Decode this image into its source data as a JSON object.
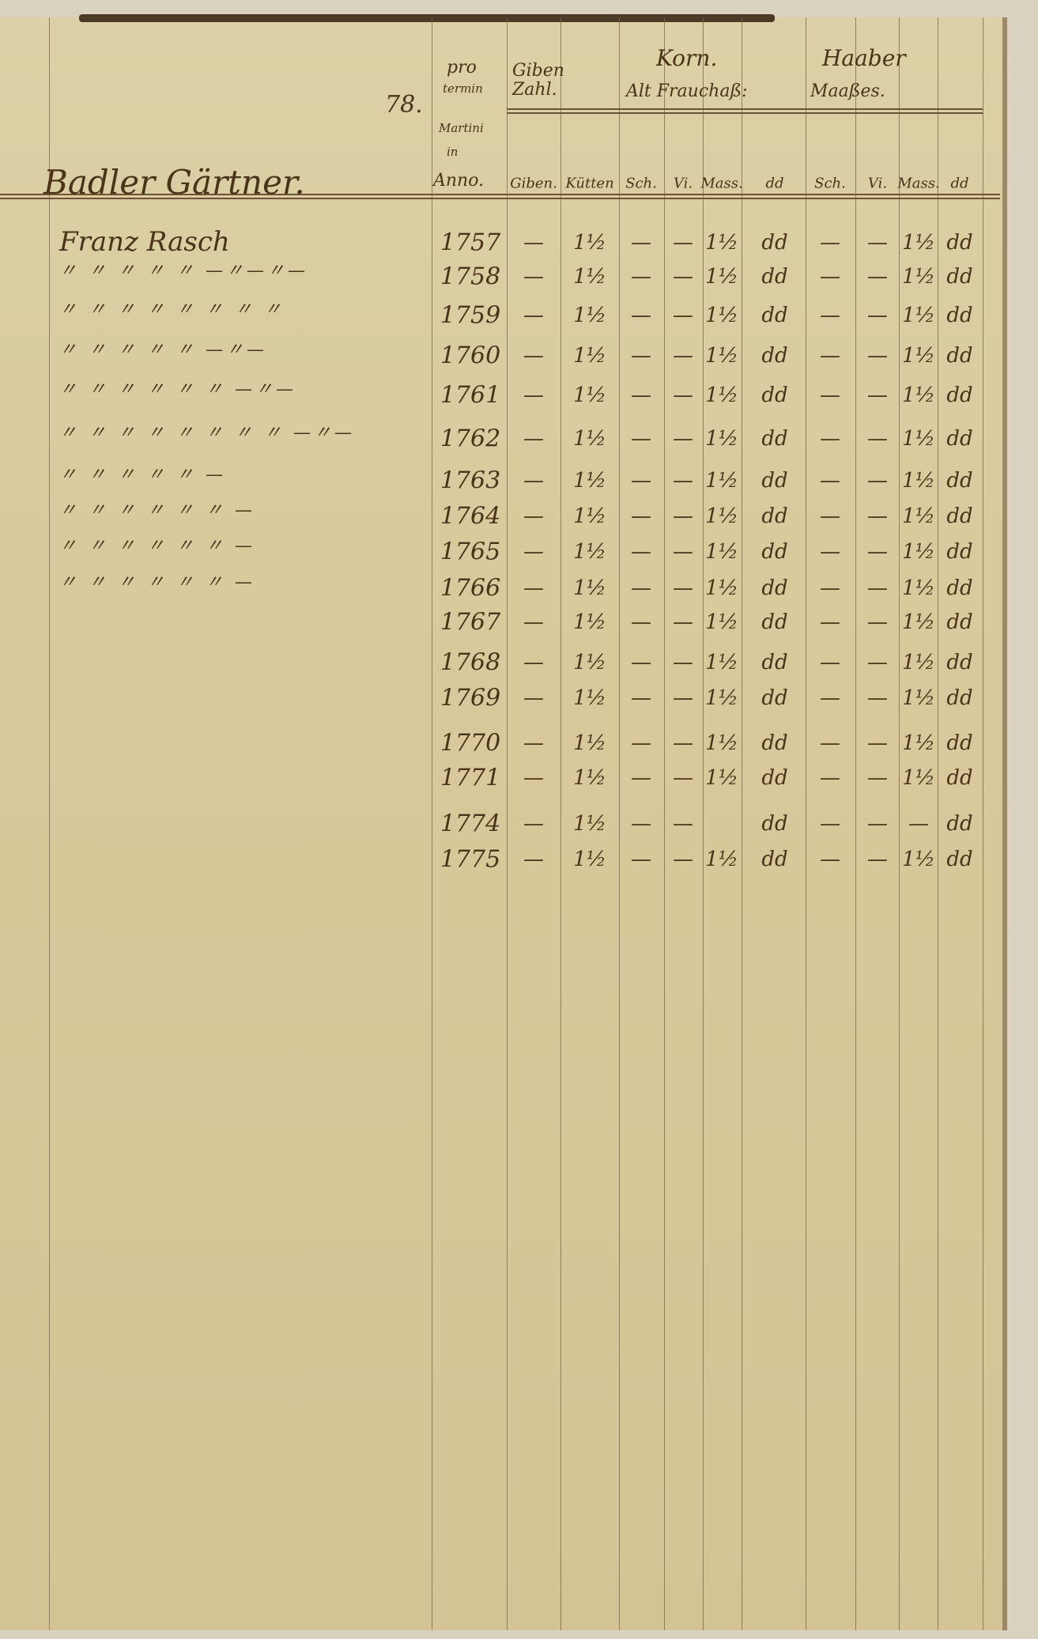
{
  "page_number": "78.",
  "section_title": "Badler Gärtner.",
  "header": {
    "term": [
      "pro",
      "termin",
      "Martini",
      "in",
      "Anno."
    ],
    "giben_zahl": "Giben Zahl.",
    "korn": "Korn.",
    "alt_frauchass": "Alt Frauchaß:",
    "haaber": "Haaber",
    "maasses": "Maaßes.",
    "sub": [
      "Giben.",
      "Kütten",
      "Sch.",
      "Vi.",
      "Mass.",
      "dd",
      "Sch.",
      "Vi.",
      "Mass.",
      "dd"
    ]
  },
  "rows": [
    {
      "name": "Franz Rasch",
      "year": "1757",
      "giben": "—",
      "kutten": "1½",
      "k_sch": "—",
      "k_vi": "—",
      "k_mass": "1½",
      "k_dd": "dd",
      "h_sch": "—",
      "h_vi": "—",
      "h_mass": "1½",
      "h_dd": "dd"
    },
    {
      "name": "〃 〃 〃 〃 〃 —〃—〃—",
      "year": "1758",
      "giben": "—",
      "kutten": "1½",
      "k_sch": "—",
      "k_vi": "—",
      "k_mass": "1½",
      "k_dd": "dd",
      "h_sch": "—",
      "h_vi": "—",
      "h_mass": "1½",
      "h_dd": "dd"
    },
    {
      "name": "〃 〃 〃 〃 〃 〃 〃 〃",
      "year": "1759",
      "giben": "—",
      "kutten": "1½",
      "k_sch": "—",
      "k_vi": "—",
      "k_mass": "1½",
      "k_dd": "dd",
      "h_sch": "—",
      "h_vi": "—",
      "h_mass": "1½",
      "h_dd": "dd"
    },
    {
      "name": "〃 〃 〃 〃 〃 —〃—",
      "year": "1760",
      "giben": "—",
      "kutten": "1½",
      "k_sch": "—",
      "k_vi": "—",
      "k_mass": "1½",
      "k_dd": "dd",
      "h_sch": "—",
      "h_vi": "—",
      "h_mass": "1½",
      "h_dd": "dd"
    },
    {
      "name": "〃 〃 〃 〃 〃 〃 —〃—",
      "year": "1761",
      "giben": "—",
      "kutten": "1½",
      "k_sch": "—",
      "k_vi": "—",
      "k_mass": "1½",
      "k_dd": "dd",
      "h_sch": "—",
      "h_vi": "—",
      "h_mass": "1½",
      "h_dd": "dd"
    },
    {
      "name": "〃 〃 〃 〃 〃 〃 〃 〃 —〃—",
      "year": "1762",
      "giben": "—",
      "kutten": "1½",
      "k_sch": "—",
      "k_vi": "—",
      "k_mass": "1½",
      "k_dd": "dd",
      "h_sch": "—",
      "h_vi": "—",
      "h_mass": "1½",
      "h_dd": "dd"
    },
    {
      "name": "〃 〃 〃 〃 〃 —",
      "year": "1763",
      "giben": "—",
      "kutten": "1½",
      "k_sch": "—",
      "k_vi": "—",
      "k_mass": "1½",
      "k_dd": "dd",
      "h_sch": "—",
      "h_vi": "—",
      "h_mass": "1½",
      "h_dd": "dd"
    },
    {
      "name": "〃 〃 〃 〃 〃 〃 —",
      "year": "1764",
      "giben": "—",
      "kutten": "1½",
      "k_sch": "—",
      "k_vi": "—",
      "k_mass": "1½",
      "k_dd": "dd",
      "h_sch": "—",
      "h_vi": "—",
      "h_mass": "1½",
      "h_dd": "dd"
    },
    {
      "name": "〃 〃 〃 〃 〃 〃 —",
      "year": "1765",
      "giben": "—",
      "kutten": "1½",
      "k_sch": "—",
      "k_vi": "—",
      "k_mass": "1½",
      "k_dd": "dd",
      "h_sch": "—",
      "h_vi": "—",
      "h_mass": "1½",
      "h_dd": "dd"
    },
    {
      "name": "〃 〃 〃 〃 〃 〃 —",
      "year": "1766",
      "giben": "—",
      "kutten": "1½",
      "k_sch": "—",
      "k_vi": "—",
      "k_mass": "1½",
      "k_dd": "dd",
      "h_sch": "—",
      "h_vi": "—",
      "h_mass": "1½",
      "h_dd": "dd"
    },
    {
      "name": "",
      "year": "1767",
      "giben": "—",
      "kutten": "1½",
      "k_sch": "—",
      "k_vi": "—",
      "k_mass": "1½",
      "k_dd": "dd",
      "h_sch": "—",
      "h_vi": "—",
      "h_mass": "1½",
      "h_dd": "dd"
    },
    {
      "name": "",
      "year": "1768",
      "giben": "—",
      "kutten": "1½",
      "k_sch": "—",
      "k_vi": "—",
      "k_mass": "1½",
      "k_dd": "dd",
      "h_sch": "—",
      "h_vi": "—",
      "h_mass": "1½",
      "h_dd": "dd"
    },
    {
      "name": "",
      "year": "1769",
      "giben": "—",
      "kutten": "1½",
      "k_sch": "—",
      "k_vi": "—",
      "k_mass": "1½",
      "k_dd": "dd",
      "h_sch": "—",
      "h_vi": "—",
      "h_mass": "1½",
      "h_dd": "dd"
    },
    {
      "name": "",
      "year": "1770",
      "giben": "—",
      "kutten": "1½",
      "k_sch": "—",
      "k_vi": "—",
      "k_mass": "1½",
      "k_dd": "dd",
      "h_sch": "—",
      "h_vi": "—",
      "h_mass": "1½",
      "h_dd": "dd"
    },
    {
      "name": "",
      "year": "1771",
      "giben": "—",
      "kutten": "1½",
      "k_sch": "—",
      "k_vi": "—",
      "k_mass": "1½",
      "k_dd": "dd",
      "h_sch": "—",
      "h_vi": "—",
      "h_mass": "1½",
      "h_dd": "dd"
    },
    {
      "name": "",
      "year": "1774",
      "giben": "—",
      "kutten": "1½",
      "k_sch": "—",
      "k_vi": "—",
      "k_mass": "",
      "k_dd": "dd",
      "h_sch": "—",
      "h_vi": "—",
      "h_mass": "—",
      "h_dd": "dd"
    },
    {
      "name": "",
      "year": "1775",
      "giben": "—",
      "kutten": "1½",
      "k_sch": "—",
      "k_vi": "—",
      "k_mass": "1½",
      "k_dd": "dd",
      "h_sch": "—",
      "h_vi": "—",
      "h_mass": "1½",
      "h_dd": "dd"
    }
  ]
}
